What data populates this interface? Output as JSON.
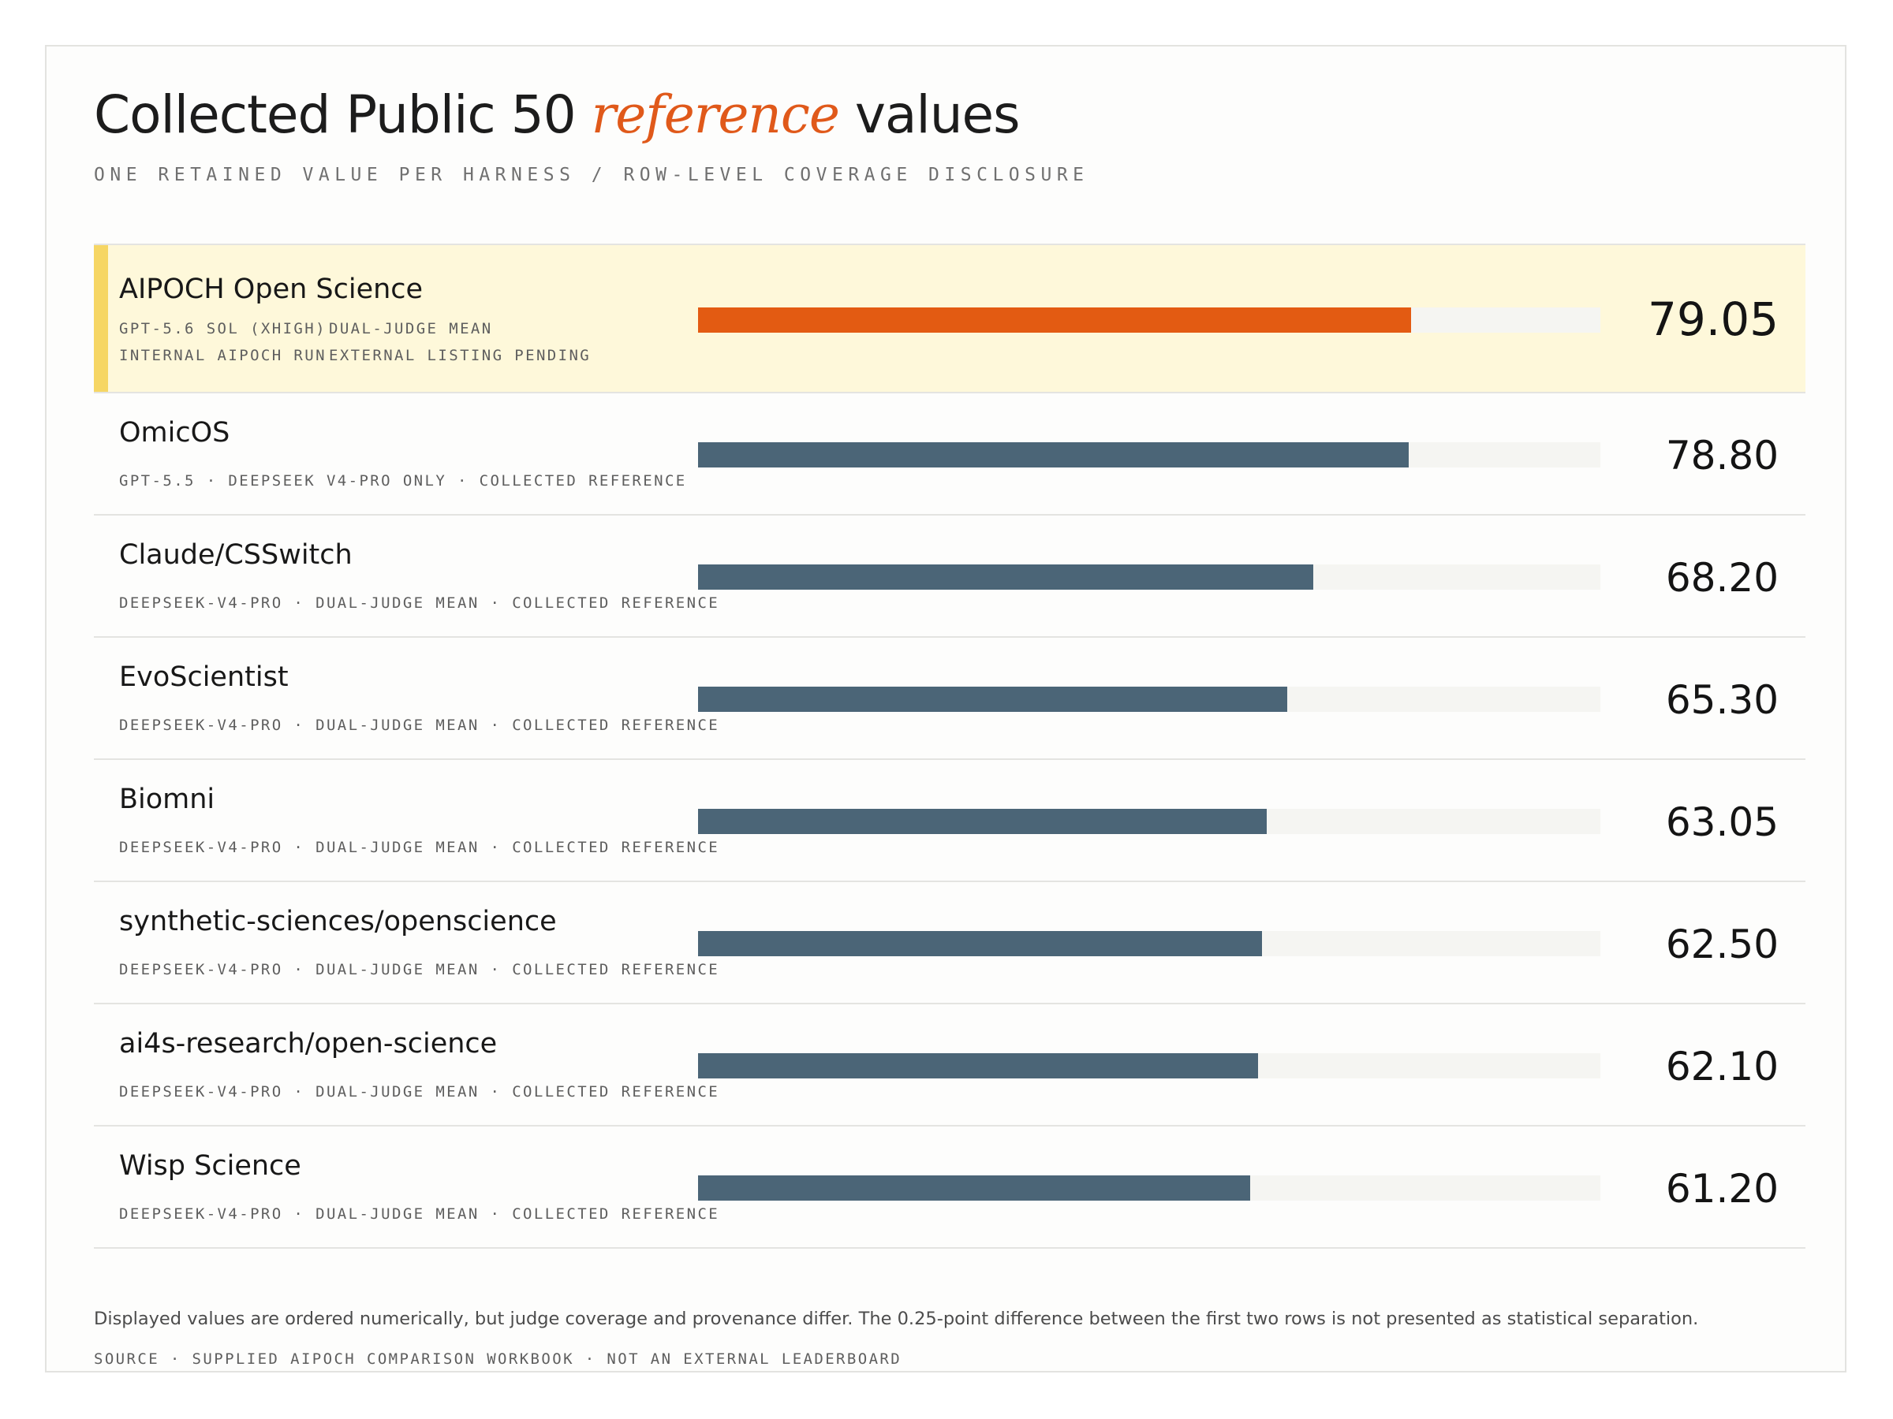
{
  "header": {
    "title_prefix": "Collected Public 50",
    "title_accent": "reference",
    "title_suffix": "values",
    "subtitle": "ONE RETAINED VALUE PER HARNESS / ROW-LEVEL COVERAGE DISCLOSURE"
  },
  "rows": [
    {
      "name": "AIPOCH Open Science",
      "meta_1a": "GPT-5.6 SOL (XHIGH)",
      "meta_1b": "DUAL-JUDGE MEAN",
      "meta_2a": "INTERNAL AIPOCH RUN",
      "meta_2b": "EXTERNAL LISTING PENDING",
      "value": "79.05"
    },
    {
      "name": "OmicOS",
      "meta": "GPT-5.5 · DEEPSEEK V4-PRO ONLY · COLLECTED REFERENCE",
      "value": "78.80"
    },
    {
      "name": "Claude/CSSwitch",
      "meta": "DEEPSEEK-V4-PRO · DUAL-JUDGE MEAN · COLLECTED REFERENCE",
      "value": "68.20"
    },
    {
      "name": "EvoScientist",
      "meta": "DEEPSEEK-V4-PRO · DUAL-JUDGE MEAN · COLLECTED REFERENCE",
      "value": "65.30"
    },
    {
      "name": "Biomni",
      "meta": "DEEPSEEK-V4-PRO · DUAL-JUDGE MEAN · COLLECTED REFERENCE",
      "value": "63.05"
    },
    {
      "name": "synthetic-sciences/openscience",
      "meta": "DEEPSEEK-V4-PRO · DUAL-JUDGE MEAN · COLLECTED REFERENCE",
      "value": "62.50"
    },
    {
      "name": "ai4s-research/open-science",
      "meta": "DEEPSEEK-V4-PRO · DUAL-JUDGE MEAN · COLLECTED REFERENCE",
      "value": "62.10"
    },
    {
      "name": "Wisp Science",
      "meta": "DEEPSEEK-V4-PRO · DUAL-JUDGE MEAN · COLLECTED REFERENCE",
      "value": "61.20"
    }
  ],
  "footer": {
    "note": "Displayed values are ordered numerically, but judge coverage and provenance differ. The 0.25-point difference between the first two rows is not presented as statistical separation.",
    "source": "SOURCE · SUPPLIED AIPOCH COMPARISON WORKBOOK · NOT AN EXTERNAL LEADERBOARD"
  },
  "colors": {
    "highlight_bar": "#e35b12",
    "bar": "#4b6577",
    "track": "#f5f5f2",
    "highlight_row": "#fef8da",
    "highlight_stripe": "#f6d664",
    "accent_text": "#e0591a"
  },
  "chart_data": {
    "type": "bar",
    "orientation": "horizontal",
    "categories": [
      "AIPOCH Open Science",
      "OmicOS",
      "Claude/CSSwitch",
      "EvoScientist",
      "Biomni",
      "synthetic-sciences/openscience",
      "ai4s-research/open-science",
      "Wisp Science"
    ],
    "values": [
      79.05,
      78.8,
      68.2,
      65.3,
      63.05,
      62.5,
      62.1,
      61.2
    ],
    "xlim": [
      0,
      100
    ],
    "highlighted_category": "AIPOCH Open Science",
    "grid": false,
    "legend": "none"
  }
}
